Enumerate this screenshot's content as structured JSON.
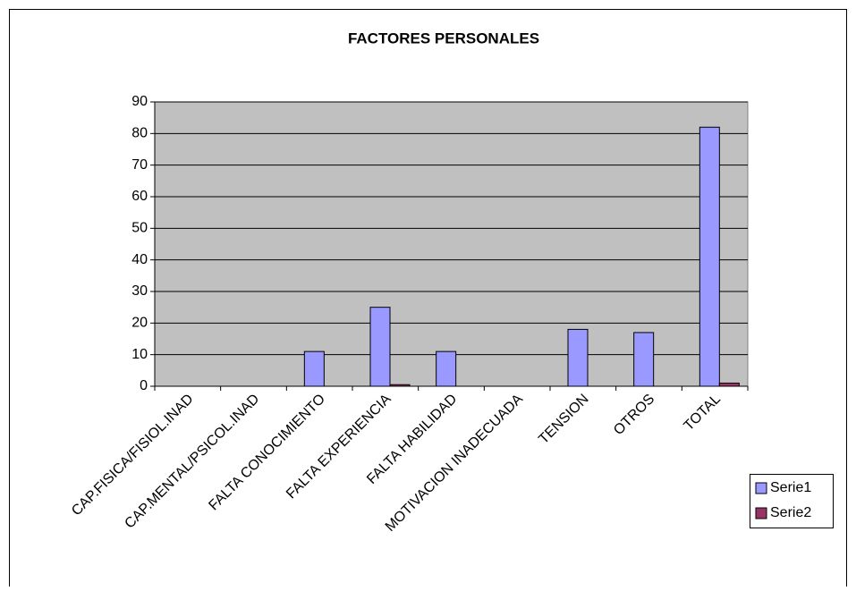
{
  "chart_data": {
    "type": "bar",
    "title": "FACTORES PERSONALES",
    "categories": [
      "CAP.FISICA/FISIOL.INAD",
      "CAP.MENTAL/PSICOL.INAD",
      "FALTA CONOCIMIENTO",
      "FALTA EXPERIENCIA",
      "FALTA HABILIDAD",
      "MOTIVACION INADECUADA",
      "TENSION",
      "OTROS",
      "TOTAL"
    ],
    "series": [
      {
        "name": "Serie1",
        "color": "#9999ff",
        "values": [
          0,
          0,
          11,
          25,
          11,
          0,
          18,
          17,
          82
        ]
      },
      {
        "name": "Serie2",
        "color": "#993366",
        "values": [
          0,
          0,
          0,
          0.5,
          0,
          0,
          0,
          0,
          1
        ]
      }
    ],
    "ylim": [
      0,
      90
    ],
    "yticks": [
      0,
      10,
      20,
      30,
      40,
      50,
      60,
      70,
      80,
      90
    ],
    "grid": true,
    "legend": "right"
  }
}
